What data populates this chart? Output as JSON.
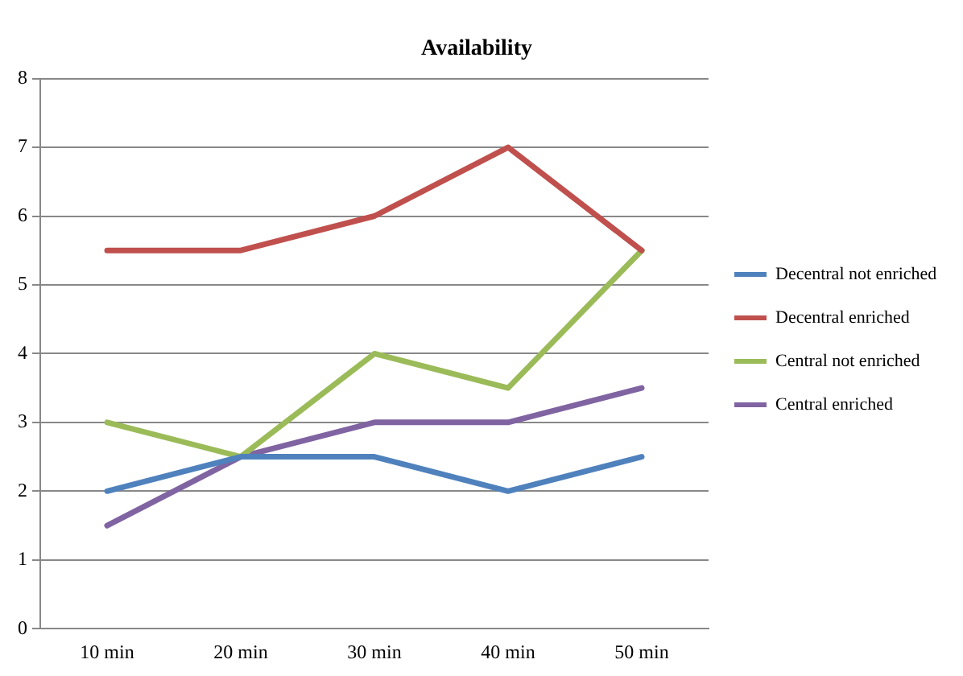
{
  "chart_data": {
    "type": "line",
    "title": "Availability",
    "categories": [
      "10 min",
      "20 min",
      "30 min",
      "40 min",
      "50 min"
    ],
    "series": [
      {
        "name": "Decentral not enriched",
        "color": "#4f81bd",
        "values": [
          2,
          2.5,
          2.5,
          2,
          2.5
        ]
      },
      {
        "name": "Decentral enriched",
        "color": "#c0504d",
        "values": [
          5.5,
          5.5,
          6,
          7,
          5.5
        ]
      },
      {
        "name": "Central not enriched",
        "color": "#9bbb59",
        "values": [
          3,
          2.5,
          4,
          3.5,
          5.5
        ]
      },
      {
        "name": "Central enriched",
        "color": "#8064a2",
        "values": [
          1.5,
          2.5,
          3,
          3,
          3.5
        ]
      }
    ],
    "ylim": [
      0,
      8
    ],
    "yticks": [
      0,
      1,
      2,
      3,
      4,
      5,
      6,
      7,
      8
    ],
    "grid": "y",
    "legend": "right",
    "marker": "none",
    "line_style": "solid"
  }
}
